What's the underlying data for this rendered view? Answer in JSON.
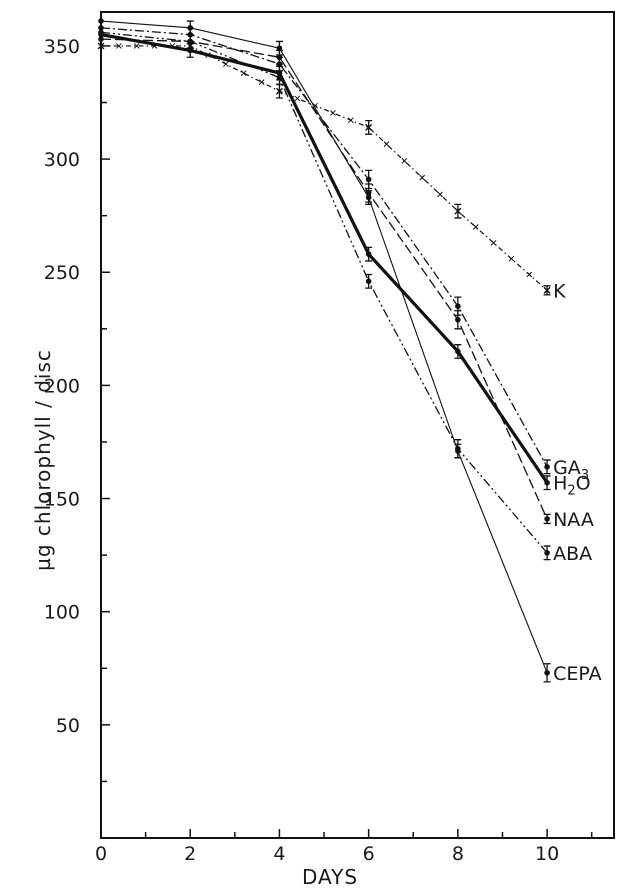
{
  "chart_data": {
    "type": "line",
    "xlabel": "DAYS",
    "ylabel": "µg chlorophyll / disc",
    "xlim": [
      0,
      11.5
    ],
    "ylim": [
      0,
      365
    ],
    "x_ticks": [
      0,
      2,
      4,
      6,
      8,
      10
    ],
    "x_tick_labels": [
      "0",
      "2",
      "4",
      "6",
      "8",
      "10"
    ],
    "y_ticks": [
      50,
      100,
      150,
      200,
      250,
      300,
      350
    ],
    "y_tick_labels": [
      "50",
      "100",
      "150",
      "200",
      "250",
      "300",
      "350"
    ],
    "grid": false,
    "legend": "inline labels at right end of each series",
    "error_bars": true,
    "series": [
      {
        "name": "K",
        "name_main": "K",
        "name_sub": "",
        "name_tail": "",
        "style": "x-dash",
        "x": [
          0,
          2,
          4,
          6,
          8,
          10
        ],
        "y": [
          350,
          350,
          330,
          314,
          277,
          242
        ],
        "err": [
          2,
          2,
          3,
          3,
          3,
          2
        ]
      },
      {
        "name": "GA3",
        "name_main": "GA",
        "name_sub": "3",
        "name_tail": "",
        "style": "dash-dot",
        "x": [
          0,
          2,
          4,
          6,
          8,
          10
        ],
        "y": [
          358,
          355,
          342,
          291,
          235,
          164
        ],
        "err": [
          3,
          3,
          3,
          4,
          4,
          3
        ]
      },
      {
        "name": "H2O",
        "name_main": "H",
        "name_sub": "2",
        "name_tail": "O",
        "style": "thick-solid",
        "x": [
          0,
          2,
          4,
          6,
          8,
          10
        ],
        "y": [
          355,
          348,
          338,
          258,
          215,
          157
        ],
        "err": [
          3,
          3,
          3,
          3,
          3,
          3
        ]
      },
      {
        "name": "NAA",
        "name_main": "NAA",
        "name_sub": "",
        "name_tail": "",
        "style": "long-dash",
        "x": [
          0,
          2,
          4,
          6,
          8,
          10
        ],
        "y": [
          353,
          352,
          345,
          285,
          229,
          141
        ],
        "err": [
          3,
          3,
          3,
          4,
          4,
          2
        ]
      },
      {
        "name": "ABA",
        "name_main": "ABA",
        "name_sub": "",
        "name_tail": "",
        "style": "dash-dot-dot",
        "x": [
          0,
          2,
          4,
          6,
          8,
          10
        ],
        "y": [
          356,
          352,
          336,
          246,
          172,
          126
        ],
        "err": [
          3,
          3,
          3,
          3,
          4,
          3
        ]
      },
      {
        "name": "CEPA",
        "name_main": "CEPA",
        "name_sub": "",
        "name_tail": "",
        "style": "thin-solid",
        "x": [
          0,
          2,
          4,
          6,
          8,
          10
        ],
        "y": [
          361,
          358,
          349,
          283,
          171,
          73
        ],
        "err": [
          3,
          3,
          3,
          3,
          3,
          4
        ]
      }
    ]
  }
}
